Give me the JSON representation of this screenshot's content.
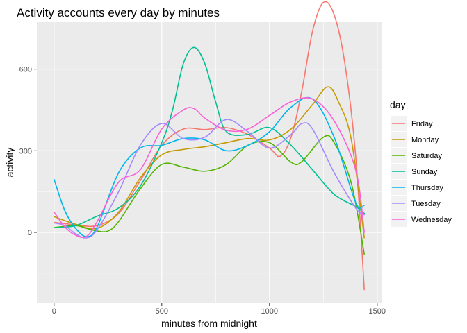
{
  "chart_data": {
    "type": "line",
    "title": "Activity accounts every day by minutes",
    "xlabel": "minutes from midnight",
    "ylabel": "activity",
    "xlim": [
      -80,
      1520
    ],
    "ylim": [
      -260,
      775
    ],
    "x_ticks": [
      0,
      500,
      1000,
      1500
    ],
    "y_ticks": [
      0,
      300,
      600
    ],
    "grid": true,
    "legend": {
      "title": "day",
      "position": "right"
    },
    "series": [
      {
        "name": "Friday",
        "color": "#F8766D",
        "points": [
          [
            0,
            37
          ],
          [
            100,
            28
          ],
          [
            200,
            25
          ],
          [
            300,
            70
          ],
          [
            400,
            190
          ],
          [
            500,
            320
          ],
          [
            600,
            380
          ],
          [
            700,
            378
          ],
          [
            800,
            385
          ],
          [
            900,
            360
          ],
          [
            1000,
            310
          ],
          [
            1050,
            280
          ],
          [
            1100,
            350
          ],
          [
            1150,
            520
          ],
          [
            1200,
            740
          ],
          [
            1250,
            845
          ],
          [
            1300,
            800
          ],
          [
            1350,
            620
          ],
          [
            1400,
            280
          ],
          [
            1440,
            -210
          ]
        ]
      },
      {
        "name": "Monday",
        "color": "#C49A00",
        "points": [
          [
            0,
            58
          ],
          [
            100,
            30
          ],
          [
            200,
            15
          ],
          [
            300,
            75
          ],
          [
            400,
            200
          ],
          [
            500,
            285
          ],
          [
            600,
            305
          ],
          [
            700,
            315
          ],
          [
            800,
            330
          ],
          [
            900,
            345
          ],
          [
            1000,
            340
          ],
          [
            1100,
            380
          ],
          [
            1200,
            470
          ],
          [
            1270,
            535
          ],
          [
            1320,
            480
          ],
          [
            1380,
            340
          ],
          [
            1440,
            -20
          ]
        ]
      },
      {
        "name": "Saturday",
        "color": "#53B400",
        "points": [
          [
            0,
            18
          ],
          [
            100,
            25
          ],
          [
            150,
            15
          ],
          [
            200,
            5
          ],
          [
            250,
            5
          ],
          [
            300,
            40
          ],
          [
            400,
            160
          ],
          [
            500,
            250
          ],
          [
            600,
            240
          ],
          [
            700,
            225
          ],
          [
            800,
            250
          ],
          [
            900,
            320
          ],
          [
            1000,
            330
          ],
          [
            1100,
            258
          ],
          [
            1150,
            260
          ],
          [
            1250,
            350
          ],
          [
            1300,
            330
          ],
          [
            1380,
            180
          ],
          [
            1440,
            -80
          ]
        ]
      },
      {
        "name": "Sunday",
        "color": "#00C094",
        "points": [
          [
            0,
            17
          ],
          [
            100,
            25
          ],
          [
            200,
            60
          ],
          [
            300,
            90
          ],
          [
            400,
            170
          ],
          [
            500,
            330
          ],
          [
            550,
            450
          ],
          [
            600,
            620
          ],
          [
            650,
            680
          ],
          [
            700,
            620
          ],
          [
            750,
            480
          ],
          [
            800,
            370
          ],
          [
            900,
            360
          ],
          [
            1000,
            385
          ],
          [
            1100,
            320
          ],
          [
            1200,
            230
          ],
          [
            1300,
            140
          ],
          [
            1400,
            95
          ],
          [
            1440,
            70
          ]
        ]
      },
      {
        "name": "Thursday",
        "color": "#00B6EB",
        "points": [
          [
            0,
            195
          ],
          [
            50,
            80
          ],
          [
            100,
            15
          ],
          [
            150,
            -15
          ],
          [
            200,
            20
          ],
          [
            300,
            220
          ],
          [
            400,
            310
          ],
          [
            500,
            320
          ],
          [
            600,
            345
          ],
          [
            700,
            340
          ],
          [
            800,
            300
          ],
          [
            900,
            320
          ],
          [
            1000,
            370
          ],
          [
            1100,
            460
          ],
          [
            1200,
            490
          ],
          [
            1300,
            350
          ],
          [
            1400,
            110
          ],
          [
            1440,
            100
          ]
        ]
      },
      {
        "name": "Tuesday",
        "color": "#A58AFF",
        "points": [
          [
            0,
            35
          ],
          [
            50,
            25
          ],
          [
            100,
            -5
          ],
          [
            150,
            -20
          ],
          [
            200,
            10
          ],
          [
            300,
            150
          ],
          [
            400,
            320
          ],
          [
            500,
            400
          ],
          [
            600,
            345
          ],
          [
            700,
            350
          ],
          [
            800,
            415
          ],
          [
            900,
            370
          ],
          [
            1000,
            310
          ],
          [
            1100,
            360
          ],
          [
            1150,
            400
          ],
          [
            1200,
            380
          ],
          [
            1300,
            220
          ],
          [
            1400,
            90
          ],
          [
            1440,
            65
          ]
        ]
      },
      {
        "name": "Wednesday",
        "color": "#FB61D7",
        "points": [
          [
            0,
            75
          ],
          [
            50,
            20
          ],
          [
            100,
            -10
          ],
          [
            150,
            -15
          ],
          [
            200,
            40
          ],
          [
            300,
            185
          ],
          [
            400,
            230
          ],
          [
            500,
            380
          ],
          [
            600,
            450
          ],
          [
            650,
            455
          ],
          [
            700,
            420
          ],
          [
            800,
            375
          ],
          [
            900,
            380
          ],
          [
            1000,
            430
          ],
          [
            1100,
            480
          ],
          [
            1200,
            490
          ],
          [
            1300,
            410
          ],
          [
            1400,
            230
          ],
          [
            1440,
            0
          ]
        ]
      }
    ]
  }
}
